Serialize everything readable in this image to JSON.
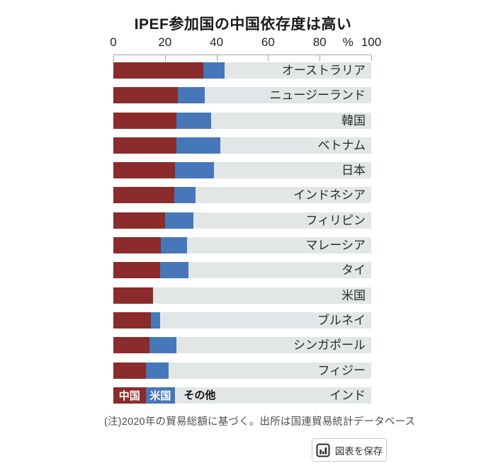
{
  "title": "IPEF参加国の中国依存度は高い",
  "chart_data": {
    "type": "bar",
    "orientation": "horizontal",
    "stacked": true,
    "title": "IPEF参加国の中国依存度は高い",
    "unit": "%",
    "xlim": [
      0,
      100
    ],
    "x_ticks": [
      0,
      20,
      40,
      60,
      80,
      100
    ],
    "grid": false,
    "legend_position": "overlaid-on-last-bar",
    "categories": [
      "オーストラリア",
      "ニュージーランド",
      "韓国",
      "ベトナム",
      "日本",
      "インドネシア",
      "フィリピン",
      "マレーシア",
      "タイ",
      "米国",
      "ブルネイ",
      "シンガポール",
      "フィジー",
      "インド"
    ],
    "series": [
      {
        "name": "中国",
        "color": "#8b2b2b",
        "values": [
          35,
          25,
          24.5,
          24.5,
          24,
          23.5,
          20,
          18.5,
          18,
          15.5,
          14.5,
          14,
          12.5,
          12.5
        ]
      },
      {
        "name": "米国",
        "color": "#4677b8",
        "values": [
          8,
          10.5,
          13.5,
          17,
          15,
          8.5,
          11,
          10,
          11,
          0,
          3.5,
          10.5,
          9,
          11.5
        ]
      },
      {
        "name": "その他",
        "color": "#e3e6e6",
        "values": [
          57,
          64.5,
          62,
          58.5,
          61,
          68,
          69,
          71.5,
          71,
          84.5,
          82,
          75.5,
          78.5,
          76
        ]
      }
    ]
  },
  "axis": {
    "unit_label": "%",
    "unit_position_pct": 91
  },
  "legend": {
    "china": "中国",
    "us": "米国",
    "others": "その他"
  },
  "note": "(注)2020年の貿易総額に基づく。出所は国連貿易統計データベース",
  "save_button": {
    "label": "図表を保存",
    "icon": "bar-chart-icon"
  }
}
